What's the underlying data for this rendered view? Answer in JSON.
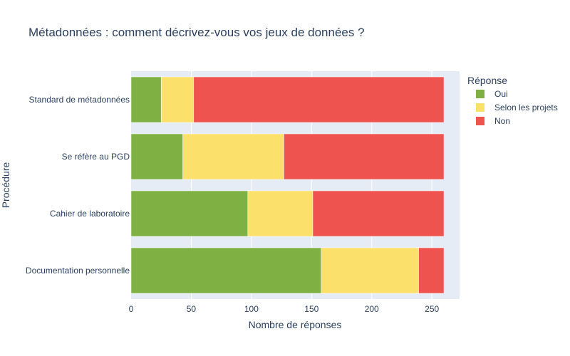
{
  "chart_data": {
    "type": "bar",
    "orientation": "horizontal",
    "barmode": "stack",
    "title": "Métadonnées : comment décrivez-vous vos jeux de données ?",
    "xlabel": "Nombre de réponses",
    "ylabel": "Procédure",
    "xlim": [
      0,
      273
    ],
    "x_ticks": [
      "0",
      "50",
      "100",
      "150",
      "200",
      "250"
    ],
    "categories": [
      "Standard de métadonnées",
      "Se réfère au PGD",
      "Cahier de laboratoire",
      "Documentation personnelle"
    ],
    "legend_title": "Réponse",
    "legend_position": "right",
    "grid": true,
    "series": [
      {
        "name": "Oui",
        "color": "#7fb043",
        "values": [
          25,
          43,
          97,
          158
        ]
      },
      {
        "name": "Selon les projets",
        "color": "#fbe06b",
        "values": [
          27,
          84,
          54,
          81
        ]
      },
      {
        "name": "Non",
        "color": "#ef5350",
        "values": [
          208,
          133,
          109,
          21
        ]
      }
    ]
  }
}
